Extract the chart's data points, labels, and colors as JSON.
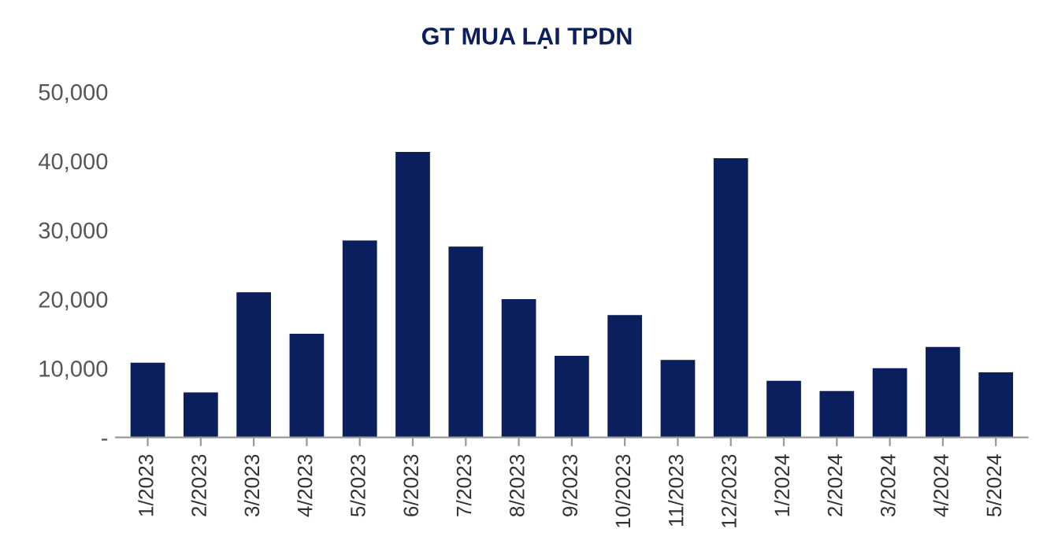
{
  "chart_data": {
    "type": "bar",
    "title": "GT MUA LẠI TPDN",
    "categories": [
      "1/2023",
      "2/2023",
      "3/2023",
      "4/2023",
      "5/2023",
      "6/2023",
      "7/2023",
      "8/2023",
      "9/2023",
      "10/2023",
      "11/2023",
      "12/2023",
      "1/2024",
      "2/2024",
      "3/2024",
      "4/2024",
      "5/2024"
    ],
    "values": [
      10800,
      6500,
      21000,
      15000,
      28500,
      41300,
      27600,
      20000,
      11800,
      17700,
      11200,
      40400,
      8200,
      6700,
      10000,
      13100,
      9400
    ],
    "color": "#0b1f5e",
    "ylim": [
      0,
      50000
    ],
    "yticks": [
      {
        "value": 0,
        "label": "-"
      },
      {
        "value": 10000,
        "label": "10,000"
      },
      {
        "value": 20000,
        "label": "20,000"
      },
      {
        "value": 30000,
        "label": "30,000"
      },
      {
        "value": 40000,
        "label": "40,000"
      },
      {
        "value": 50000,
        "label": "50,000"
      }
    ],
    "grid": false
  }
}
